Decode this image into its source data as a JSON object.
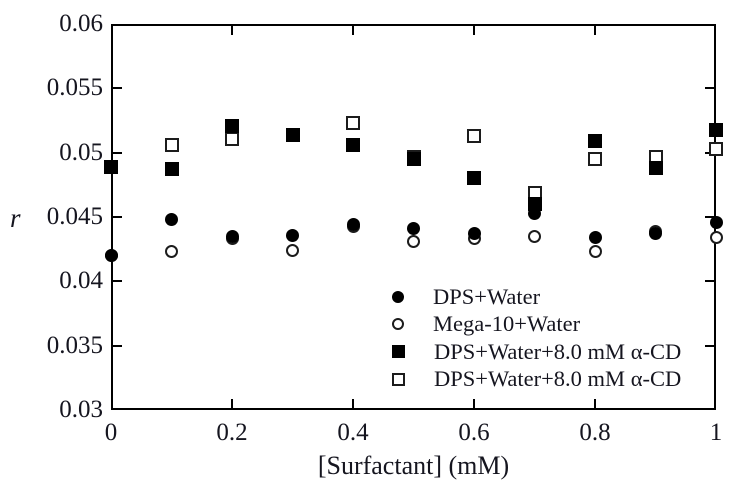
{
  "chart_data": {
    "type": "scatter",
    "title": "",
    "xlabel": "[Surfactant] (mM)",
    "ylabel": "r",
    "xlim": [
      0,
      1
    ],
    "ylim": [
      0.03,
      0.06
    ],
    "xticks": {
      "values": [
        0,
        0.2,
        0.4,
        0.6,
        0.8,
        1
      ],
      "labels": [
        "0",
        "0.2",
        "0.4",
        "0.6",
        "0.8",
        "1"
      ]
    },
    "yticks": {
      "values": [
        0.03,
        0.035,
        0.04,
        0.045,
        0.05,
        0.055,
        0.06
      ],
      "labels": [
        "0.03",
        "0.035",
        "0.04",
        "0.045",
        "0.05",
        "0.055",
        "0.06"
      ]
    },
    "grid": false,
    "legend": {
      "position": "inside-bottom-right"
    },
    "x": [
      0,
      0.1,
      0.2,
      0.3,
      0.4,
      0.5,
      0.6,
      0.7,
      0.8,
      0.9,
      1.0
    ],
    "series": [
      {
        "name": "DPS+Water",
        "marker": "filled-circle",
        "values": [
          0.042,
          0.0448,
          0.0435,
          0.0436,
          0.0444,
          0.0441,
          0.0437,
          0.0453,
          0.0434,
          0.0437,
          0.0446
        ]
      },
      {
        "name": "Mega-10+Water",
        "marker": "open-circle",
        "values": [
          0.042,
          0.0423,
          0.0433,
          0.0424,
          0.0443,
          0.0431,
          0.0433,
          0.0435,
          0.0423,
          0.0439,
          0.0434
        ]
      },
      {
        "name": "DPS+Water+8.0 mM α-CD",
        "marker": "filled-square",
        "values": [
          0.0489,
          0.0487,
          0.0521,
          0.0514,
          0.0506,
          0.0495,
          0.048,
          0.046,
          0.0509,
          0.0488,
          0.0518
        ]
      },
      {
        "name": "DPS+Water+8.0 mM α-CD",
        "marker": "open-square",
        "values": [
          0.0489,
          0.0506,
          0.0511,
          0.0514,
          0.0523,
          0.0497,
          0.0513,
          0.0469,
          0.0495,
          0.0497,
          0.0503
        ]
      }
    ],
    "colors": {
      "ink": "#000000",
      "background": "#ffffff"
    }
  }
}
